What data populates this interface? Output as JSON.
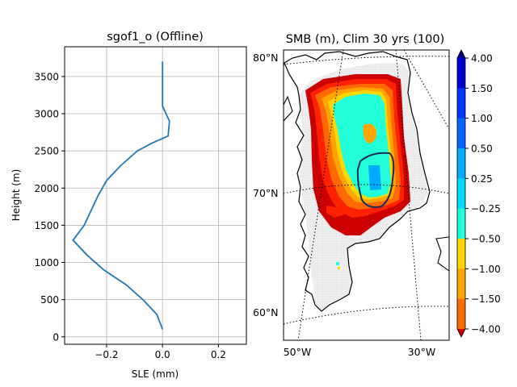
{
  "chart_data": [
    {
      "type": "line",
      "title": "sgof1_o (Offline)",
      "xlabel": "SLE (mm)",
      "ylabel": "Height (m)",
      "xlim": [
        -0.35,
        0.3
      ],
      "ylim": [
        -100,
        3900
      ],
      "xticks": [
        -0.2,
        0.0,
        0.2
      ],
      "xtick_labels": [
        "−0.2",
        "0.0",
        "0.2"
      ],
      "yticks": [
        0,
        500,
        1000,
        1500,
        2000,
        2500,
        3000,
        3500
      ],
      "ytick_labels": [
        "0",
        "500",
        "1000",
        "1500",
        "2000",
        "2500",
        "3000",
        "3500"
      ],
      "grid": true,
      "series": [
        {
          "color": "#1f77b4",
          "x": [
            0.0,
            -0.02,
            -0.07,
            -0.13,
            -0.21,
            -0.27,
            -0.32,
            -0.28,
            -0.23,
            -0.2,
            -0.15,
            -0.09,
            -0.04,
            0.02,
            0.025,
            0.0,
            0.0
          ],
          "y": [
            100,
            300,
            500,
            700,
            900,
            1100,
            1300,
            1500,
            1900,
            2100,
            2300,
            2500,
            2600,
            2700,
            2900,
            3100,
            3700
          ]
        }
      ]
    },
    {
      "type": "heatmap",
      "title": "SMB (m), Clim 30 yrs (100)",
      "lat_labels": [
        "80°N",
        "70°N",
        "60°N"
      ],
      "lon_labels": [
        "50°W",
        "30°W"
      ],
      "colorbar": {
        "tick_labels": [
          "4.00",
          "1.50",
          "1.00",
          "0.50",
          "0.25",
          "−0.25",
          "−0.50",
          "−1.00",
          "−1.50",
          "−4.00"
        ],
        "colors": [
          "#00008b",
          "#0000cd",
          "#0033ff",
          "#0066ff",
          "#00aaff",
          "#00d8ff",
          "#22ffd8",
          "#ffd700",
          "#ffa500",
          "#ff6a00",
          "#ff2200",
          "#cc0000"
        ],
        "extend": "both"
      },
      "colors": {
        "ice_grid": "#dcdcdc",
        "coast": "#000000",
        "contour": "#1a2a5a"
      }
    }
  ]
}
